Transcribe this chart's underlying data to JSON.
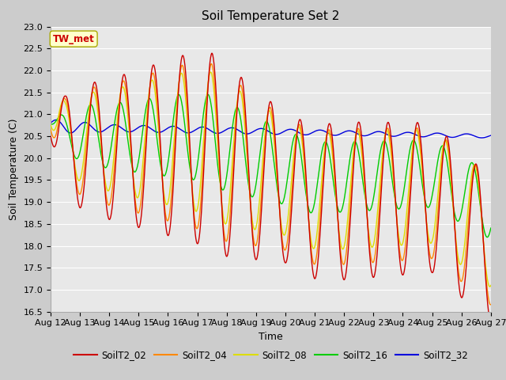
{
  "title": "Soil Temperature Set 2",
  "xlabel": "Time",
  "ylabel": "Soil Temperature (C)",
  "ylim": [
    16.5,
    23.0
  ],
  "n_days": 15,
  "x_tick_labels": [
    "Aug 12",
    "Aug 13",
    "Aug 14",
    "Aug 15",
    "Aug 16",
    "Aug 17",
    "Aug 18",
    "Aug 19",
    "Aug 20",
    "Aug 21",
    "Aug 22",
    "Aug 23",
    "Aug 24",
    "Aug 25",
    "Aug 26",
    "Aug 27"
  ],
  "colors": {
    "SoilT2_02": "#cc0000",
    "SoilT2_04": "#ff8800",
    "SoilT2_08": "#dddd00",
    "SoilT2_16": "#00cc00",
    "SoilT2_32": "#0000dd"
  },
  "annotation_text": "TW_met",
  "annotation_color": "#cc0000",
  "annotation_bg": "#ffffcc",
  "annotation_border": "#aaaa00",
  "fig_bg": "#cccccc",
  "plot_bg": "#e8e8e8",
  "grid_color": "#ffffff",
  "title_fontsize": 11,
  "axis_label_fontsize": 9,
  "tick_fontsize": 8,
  "linewidth": 1.0
}
